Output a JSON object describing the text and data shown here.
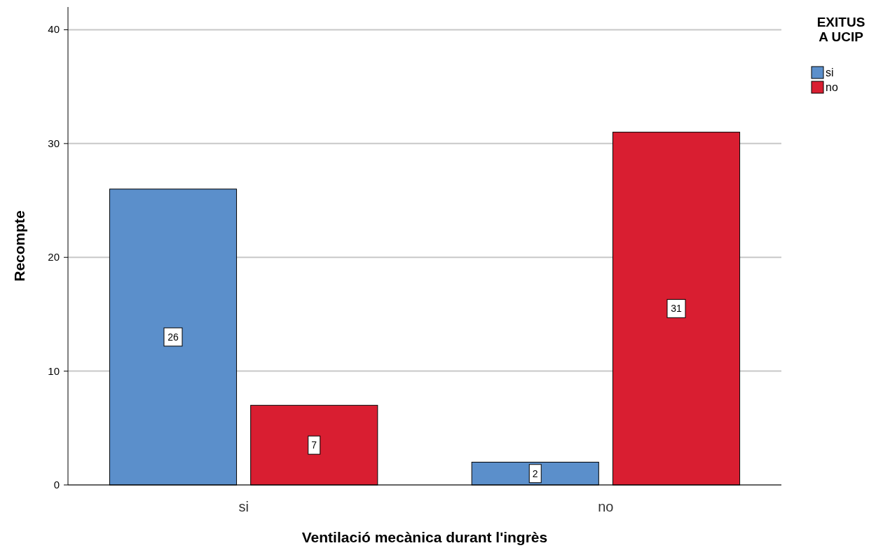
{
  "chart_data": {
    "type": "bar",
    "xlabel": "Ventilació mecànica durant l'ingrès",
    "ylabel": "Recompte",
    "legend_title": "EXITUS A UCIP",
    "categories": [
      "si",
      "no"
    ],
    "series": [
      {
        "name": "si",
        "color": "#5b8fcb",
        "values": [
          26,
          2
        ]
      },
      {
        "name": "no",
        "color": "#d91e31",
        "values": [
          7,
          31
        ]
      }
    ],
    "ylim": [
      0,
      42
    ],
    "yticks": [
      0,
      10,
      20,
      30,
      40
    ],
    "grid": "y",
    "legend": "top right",
    "data_labels": true
  }
}
